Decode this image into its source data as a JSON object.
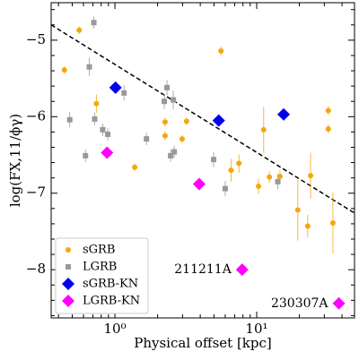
{
  "chart_data": {
    "type": "scatter",
    "x_label": "Physical offset [kpc]",
    "y_label": "log(FX,11/ϕγ)",
    "xscale": "log",
    "xlim": [
      0.355,
      49
    ],
    "ylim": [
      -8.63,
      -4.51
    ],
    "xticks": [
      {
        "value": 1,
        "label": "10⁰"
      },
      {
        "value": 10,
        "label": "10¹"
      }
    ],
    "yticks": [
      -5,
      -6,
      -7,
      -8
    ],
    "legend": "lower left",
    "series": [
      {
        "name": "sGRB",
        "color": "#f5a70f",
        "marker": "circle",
        "x": [
          0.44,
          0.56,
          0.74,
          1.38,
          2.26,
          2.26,
          3.2,
          2.98,
          5.6,
          6.6,
          7.5,
          10.3,
          11.2,
          12.3,
          14.6,
          19.5,
          24,
          32,
          32,
          34.5,
          22.9
        ],
        "values": [
          -5.39,
          -4.87,
          -5.83,
          -6.66,
          -6.07,
          -6.25,
          -6.06,
          -6.29,
          -5.14,
          -6.7,
          -6.61,
          -6.91,
          -6.17,
          -6.79,
          -6.78,
          -7.22,
          -6.77,
          -5.92,
          -6.16,
          -7.39,
          -7.43
        ],
        "yerr": [
          0.05,
          0.05,
          0.12,
          0.05,
          0.06,
          0.06,
          0.05,
          0.05,
          0.06,
          0.15,
          0.12,
          0.1,
          0.3,
          0.08,
          0.08,
          0.4,
          0.3,
          0.06,
          0.06,
          0.4,
          0.15
        ]
      },
      {
        "name": "LGRB",
        "color": "#999999",
        "marker": "square",
        "x": [
          0.48,
          0.62,
          0.66,
          0.71,
          0.72,
          0.82,
          0.89,
          1.16,
          1.67,
          2.23,
          2.33,
          2.47,
          2.58,
          2.62,
          4.97,
          6.0,
          14.1
        ],
        "values": [
          -6.04,
          -6.51,
          -5.35,
          -4.77,
          -6.03,
          -6.17,
          -6.23,
          -5.69,
          -6.29,
          -5.8,
          -5.62,
          -6.51,
          -5.78,
          -6.46,
          -6.56,
          -6.94,
          -6.85
        ],
        "yerr": [
          0.1,
          0.08,
          0.12,
          0.08,
          0.08,
          0.08,
          0.08,
          0.1,
          0.08,
          0.1,
          0.1,
          0.08,
          0.12,
          0.08,
          0.1,
          0.1,
          0.1
        ]
      },
      {
        "name": "sGRB-KN",
        "color": "#0000ee",
        "marker": "diamond",
        "x": [
          1.01,
          5.4,
          15.5
        ],
        "values": [
          -5.62,
          -6.05,
          -5.97
        ]
      },
      {
        "name": "LGRB-KN",
        "color": "#ff00ff",
        "marker": "diamond",
        "x": [
          0.88,
          3.93,
          7.9,
          38
        ],
        "values": [
          -6.47,
          -6.88,
          -8.0,
          -8.44
        ]
      }
    ],
    "annotations": [
      {
        "text": "211211A",
        "x": 7.9,
        "y": -8.0,
        "color": "#ff00ff"
      },
      {
        "text": "230307A",
        "x": 38,
        "y": -8.44,
        "color": "#ff00ff"
      }
    ],
    "trend_line": {
      "x": [
        0.355,
        49
      ],
      "y": [
        -4.8,
        -7.26
      ],
      "color": "#000000",
      "style": "dashed"
    }
  }
}
